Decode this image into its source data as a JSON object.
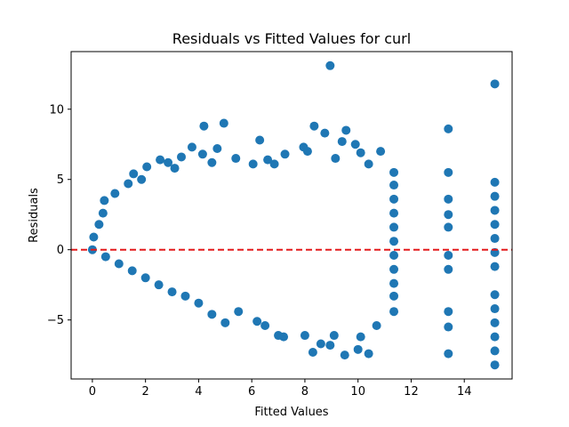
{
  "chart_data": {
    "type": "scatter",
    "title": "Residuals vs Fitted Values for curl",
    "xlabel": "Fitted Values",
    "ylabel": "Residuals",
    "xlim": [
      -0.8,
      15.8
    ],
    "ylim": [
      -9.2,
      14.1
    ],
    "xticks": [
      0,
      2,
      4,
      6,
      8,
      10,
      12,
      14
    ],
    "yticks": [
      -5,
      0,
      5,
      10
    ],
    "reference_line": {
      "y": 0,
      "style": "dashed",
      "color": "#e31a1c"
    },
    "point_color": "#1f77b4",
    "grid": false,
    "series": [
      {
        "points": [
          [
            0.05,
            0.9
          ],
          [
            0.25,
            1.8
          ],
          [
            0.4,
            2.6
          ],
          [
            0.45,
            3.5
          ],
          [
            0.85,
            4.0
          ],
          [
            1.35,
            4.7
          ],
          [
            1.55,
            5.4
          ],
          [
            1.85,
            5.0
          ],
          [
            2.05,
            5.9
          ],
          [
            2.55,
            6.4
          ],
          [
            2.85,
            6.2
          ],
          [
            3.1,
            5.8
          ],
          [
            3.35,
            6.6
          ],
          [
            3.75,
            7.3
          ],
          [
            4.15,
            6.8
          ],
          [
            4.2,
            8.8
          ],
          [
            4.5,
            6.2
          ],
          [
            4.7,
            7.2
          ],
          [
            4.95,
            9.0
          ],
          [
            5.4,
            6.5
          ],
          [
            6.05,
            6.1
          ],
          [
            6.3,
            7.8
          ],
          [
            6.6,
            6.4
          ],
          [
            6.85,
            6.1
          ],
          [
            7.25,
            6.8
          ],
          [
            7.95,
            7.3
          ],
          [
            8.1,
            7.0
          ],
          [
            8.35,
            8.8
          ],
          [
            8.75,
            8.3
          ],
          [
            8.95,
            13.1
          ],
          [
            9.15,
            6.5
          ],
          [
            9.4,
            7.7
          ],
          [
            9.55,
            8.5
          ],
          [
            9.9,
            7.5
          ],
          [
            10.1,
            6.9
          ],
          [
            10.4,
            6.1
          ],
          [
            10.85,
            7.0
          ],
          [
            11.35,
            5.5
          ],
          [
            13.4,
            8.6
          ],
          [
            13.4,
            5.5
          ],
          [
            13.4,
            3.6
          ],
          [
            13.4,
            2.5
          ],
          [
            13.4,
            1.6
          ],
          [
            13.4,
            -0.4
          ],
          [
            13.4,
            -1.4
          ],
          [
            13.4,
            -4.4
          ],
          [
            13.4,
            -5.5
          ],
          [
            13.4,
            -7.4
          ],
          [
            15.15,
            11.8
          ],
          [
            15.15,
            4.8
          ],
          [
            15.15,
            3.8
          ],
          [
            15.15,
            2.8
          ],
          [
            15.15,
            1.8
          ],
          [
            15.15,
            0.8
          ],
          [
            15.15,
            -0.2
          ],
          [
            15.15,
            -1.2
          ],
          [
            15.15,
            -3.2
          ],
          [
            15.15,
            -4.2
          ],
          [
            15.15,
            -5.2
          ],
          [
            15.15,
            -6.2
          ],
          [
            15.15,
            -7.2
          ],
          [
            15.15,
            -8.2
          ],
          [
            0.0,
            0.0
          ],
          [
            0.5,
            -0.5
          ],
          [
            1.0,
            -1.0
          ],
          [
            1.5,
            -1.5
          ],
          [
            2.0,
            -2.0
          ],
          [
            2.5,
            -2.5
          ],
          [
            3.0,
            -3.0
          ],
          [
            3.5,
            -3.3
          ],
          [
            4.0,
            -3.8
          ],
          [
            4.5,
            -4.6
          ],
          [
            5.0,
            -5.2
          ],
          [
            5.5,
            -4.4
          ],
          [
            6.2,
            -5.1
          ],
          [
            6.5,
            -5.4
          ],
          [
            7.0,
            -6.1
          ],
          [
            7.2,
            -6.2
          ],
          [
            8.0,
            -6.1
          ],
          [
            8.3,
            -7.3
          ],
          [
            8.6,
            -6.7
          ],
          [
            9.1,
            -6.1
          ],
          [
            9.5,
            -7.5
          ],
          [
            10.1,
            -6.2
          ],
          [
            10.4,
            -7.4
          ],
          [
            10.0,
            -7.1
          ],
          [
            10.7,
            -5.4
          ],
          [
            11.35,
            -4.4
          ],
          [
            8.95,
            -6.8
          ],
          [
            11.35,
            -3.3
          ],
          [
            11.35,
            3.6
          ],
          [
            11.35,
            2.6
          ],
          [
            11.35,
            1.6
          ],
          [
            11.35,
            0.6
          ],
          [
            11.35,
            -0.4
          ],
          [
            11.35,
            -1.4
          ],
          [
            11.35,
            -2.4
          ],
          [
            11.35,
            4.6
          ]
        ]
      }
    ]
  }
}
